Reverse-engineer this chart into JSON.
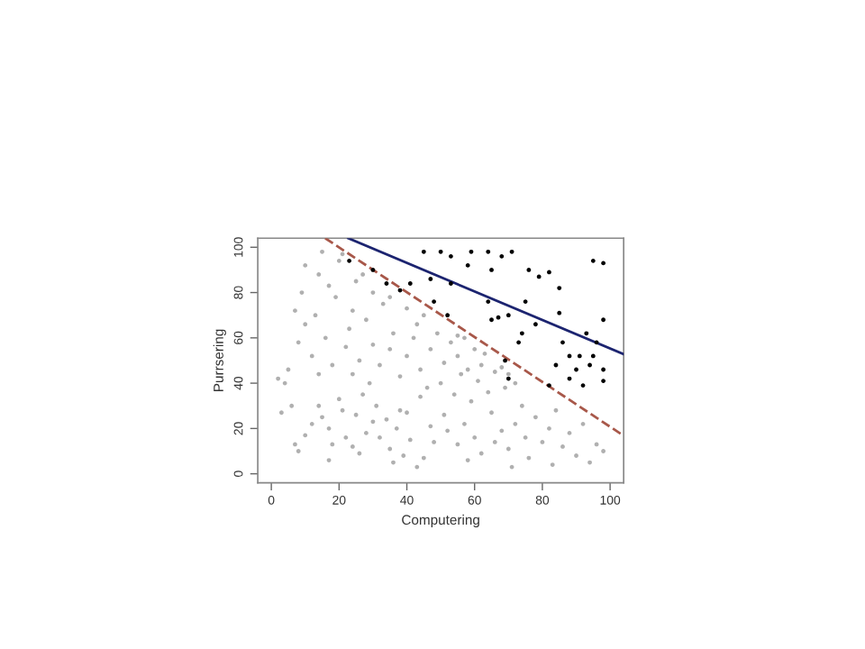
{
  "chart_data": {
    "type": "scatter",
    "xlabel": "Computering",
    "ylabel": "Purrsering",
    "xlim": [
      -4,
      104
    ],
    "ylim": [
      -4,
      104
    ],
    "xticks": [
      0,
      20,
      40,
      60,
      80,
      100
    ],
    "yticks": [
      0,
      20,
      40,
      60,
      80,
      100
    ],
    "grid": false,
    "legend": false,
    "series": [
      {
        "marker": "circle",
        "color": "#b0b0b0",
        "x": [
          2,
          4,
          3,
          7,
          8,
          10,
          12,
          14,
          15,
          17,
          18,
          20,
          21,
          22,
          24,
          25,
          27,
          28,
          30,
          31,
          32,
          34,
          35,
          37,
          38,
          39,
          40,
          41,
          43,
          44,
          46,
          47,
          48,
          50,
          51,
          52,
          54,
          55,
          56,
          57,
          59,
          60,
          61,
          62,
          64,
          65,
          66,
          68,
          69,
          70,
          72,
          74,
          75,
          76,
          78,
          80,
          82,
          84,
          86,
          88,
          90,
          92,
          94,
          96,
          98,
          83,
          71,
          58,
          45,
          36,
          26,
          17,
          6,
          5,
          8,
          7,
          10,
          12,
          14,
          16,
          18,
          19,
          22,
          23,
          24,
          26,
          28,
          29,
          30,
          32,
          33,
          35,
          36,
          38,
          40,
          42,
          44,
          45,
          47,
          49,
          51,
          53,
          55,
          57,
          58,
          60,
          62,
          63,
          66,
          68,
          70,
          72,
          55,
          9,
          10,
          14,
          15,
          17,
          20,
          21,
          25,
          27,
          30,
          35,
          40,
          43,
          13,
          24
        ],
        "values": [
          42,
          40,
          27,
          13,
          10,
          17,
          22,
          30,
          25,
          20,
          13,
          33,
          28,
          16,
          12,
          26,
          35,
          18,
          23,
          30,
          16,
          24,
          11,
          20,
          28,
          8,
          27,
          15,
          3,
          34,
          38,
          21,
          14,
          40,
          26,
          19,
          35,
          13,
          44,
          22,
          32,
          16,
          41,
          9,
          36,
          27,
          14,
          19,
          38,
          11,
          22,
          30,
          16,
          7,
          25,
          14,
          20,
          28,
          12,
          18,
          8,
          22,
          5,
          13,
          10,
          4,
          3,
          6,
          7,
          5,
          9,
          6,
          30,
          46,
          58,
          72,
          66,
          52,
          44,
          60,
          48,
          78,
          56,
          64,
          44,
          50,
          68,
          40,
          57,
          48,
          75,
          55,
          62,
          43,
          52,
          60,
          46,
          70,
          55,
          62,
          49,
          58,
          52,
          60,
          46,
          55,
          48,
          53,
          45,
          47,
          44,
          40,
          61,
          80,
          92,
          88,
          98,
          83,
          94,
          97,
          85,
          88,
          80,
          78,
          73,
          66,
          70,
          72
        ]
      },
      {
        "marker": "circle",
        "color": "#000000",
        "x": [
          23,
          30,
          45,
          50,
          53,
          59,
          64,
          68,
          71,
          58,
          34,
          41,
          47,
          38,
          48,
          65,
          53,
          76,
          79,
          82,
          85,
          75,
          85,
          95,
          98,
          98,
          93,
          52,
          64,
          65,
          67,
          70,
          74,
          78,
          86,
          88,
          91,
          90,
          96,
          98,
          69,
          70,
          73,
          82,
          84,
          88,
          92,
          94,
          95,
          98
        ],
        "values": [
          94,
          90,
          98,
          98,
          96,
          98,
          98,
          96,
          98,
          92,
          84,
          84,
          86,
          81,
          76,
          90,
          84,
          90,
          87,
          89,
          82,
          76,
          71,
          94,
          93,
          68,
          62,
          70,
          76,
          68,
          69,
          70,
          62,
          66,
          58,
          52,
          52,
          46,
          58,
          46,
          50,
          42,
          58,
          39,
          48,
          42,
          39,
          48,
          52,
          41
        ]
      },
      {
        "type": "line",
        "color": "#1c2470",
        "line_style": "solid",
        "marker": "none",
        "x": [
          22.7,
          104
        ],
        "values": [
          104,
          52.8
        ]
      },
      {
        "type": "line",
        "color": "#a8584a",
        "line_style": "dashed",
        "marker": "none",
        "x": [
          15.9,
          104
        ],
        "values": [
          104,
          16.8
        ]
      }
    ]
  }
}
